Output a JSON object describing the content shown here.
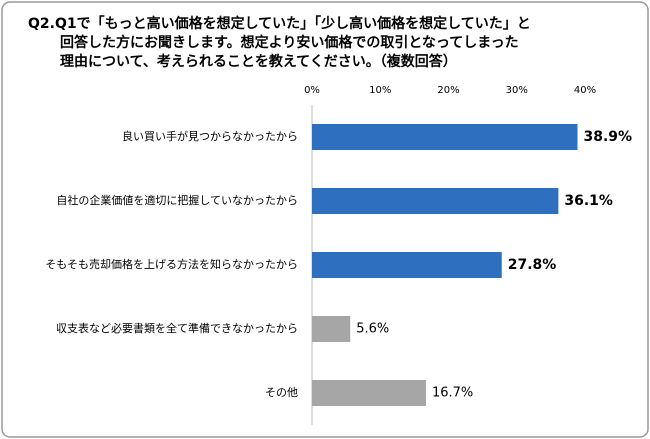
{
  "chart_data": {
    "type": "bar",
    "orientation": "horizontal",
    "title": [
      "Q2.Q1で「もっと高い価格を想定していた」「少し高い価格を想定していた」と",
      "回答した方にお聞きします。想定より安い価格での取引となってしまった",
      "理由について、考えられることを教えてください。（複数回答）"
    ],
    "categories": [
      "良い買い手が見つからなかったから",
      "自社の企業価値を適切に把握していなかったから",
      "そもそも売却価格を上げる方法を知らなかったから",
      "収支表など必要書類を全て準備できなかったから",
      "その他"
    ],
    "values": [
      38.9,
      36.1,
      27.8,
      5.6,
      16.7
    ],
    "value_labels": [
      "38.9%",
      "36.1%",
      "27.8%",
      "5.6%",
      "16.7%"
    ],
    "colors": [
      "#2e6fbf",
      "#2e6fbf",
      "#2e6fbf",
      "#a6a6a6",
      "#a6a6a6"
    ],
    "xlim": [
      0,
      40
    ],
    "xticks": [
      {
        "value": 0,
        "label": "0%"
      },
      {
        "value": 10,
        "label": "10%"
      },
      {
        "value": 20,
        "label": "20%"
      },
      {
        "value": 30,
        "label": "30%"
      },
      {
        "value": 40,
        "label": "40%"
      }
    ],
    "grid": false
  }
}
